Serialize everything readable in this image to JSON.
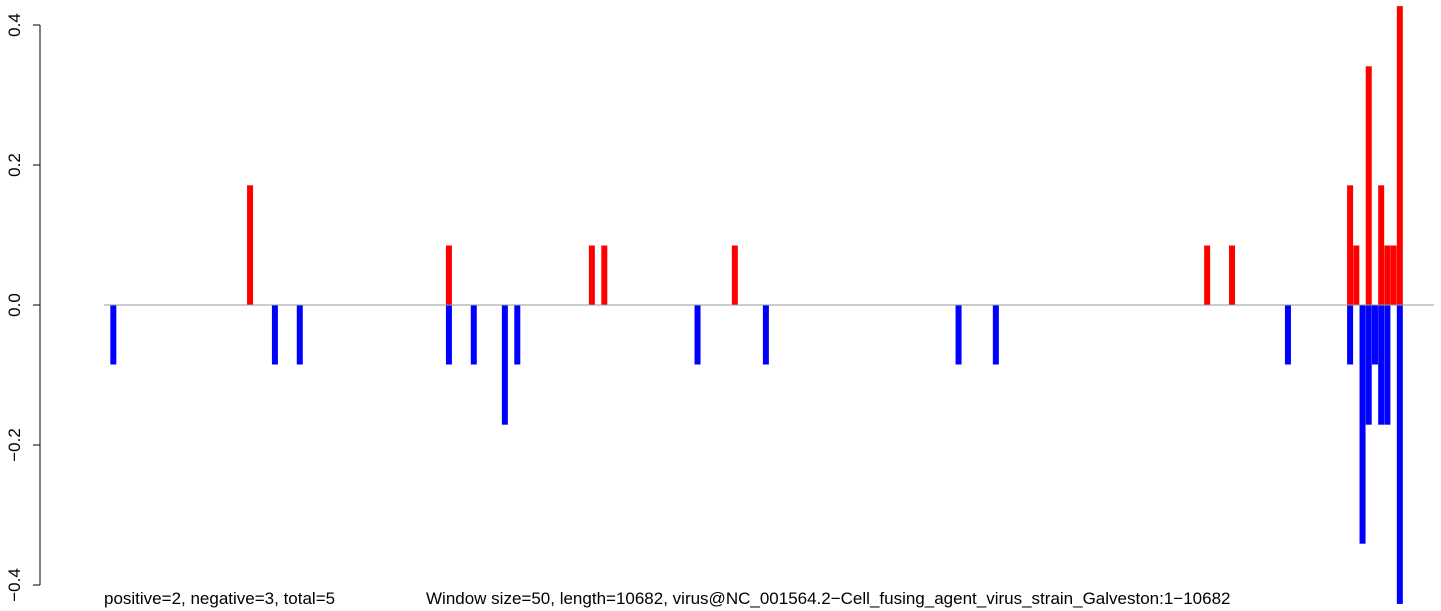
{
  "chart_data": {
    "type": "bar",
    "ylim": [
      -0.4,
      0.4
    ],
    "yticks": [
      -0.4,
      -0.2,
      0.0,
      0.2,
      0.4
    ],
    "ytick_labels": [
      "−0.4",
      "−0.2",
      "0.0",
      "0.2",
      "0.4"
    ],
    "grid": false,
    "legend": "none",
    "colors": {
      "positive": "#ff0000",
      "negative": "#0000ff",
      "baseline": "#999999",
      "axis": "#000000"
    },
    "x_window_count": 214,
    "positive_bars": [
      {
        "window": 23,
        "value": 0.171
      },
      {
        "window": 55,
        "value": 0.085
      },
      {
        "window": 78,
        "value": 0.085
      },
      {
        "window": 80,
        "value": 0.085
      },
      {
        "window": 101,
        "value": 0.085
      },
      {
        "window": 177,
        "value": 0.085
      },
      {
        "window": 181,
        "value": 0.085
      },
      {
        "window": 200,
        "value": 0.171
      },
      {
        "window": 201,
        "value": 0.085
      },
      {
        "window": 203,
        "value": 0.341
      },
      {
        "window": 205,
        "value": 0.171
      },
      {
        "window": 206,
        "value": 0.085
      },
      {
        "window": 207,
        "value": 0.085
      },
      {
        "window": 208,
        "value": 0.427
      }
    ],
    "negative_bars": [
      {
        "window": 1,
        "value": -0.085
      },
      {
        "window": 27,
        "value": -0.085
      },
      {
        "window": 31,
        "value": -0.085
      },
      {
        "window": 55,
        "value": -0.085
      },
      {
        "window": 59,
        "value": -0.085
      },
      {
        "window": 64,
        "value": -0.171
      },
      {
        "window": 66,
        "value": -0.085
      },
      {
        "window": 95,
        "value": -0.085
      },
      {
        "window": 106,
        "value": -0.085
      },
      {
        "window": 137,
        "value": -0.085
      },
      {
        "window": 143,
        "value": -0.085
      },
      {
        "window": 190,
        "value": -0.085
      },
      {
        "window": 200,
        "value": -0.085
      },
      {
        "window": 202,
        "value": -0.341
      },
      {
        "window": 203,
        "value": -0.171
      },
      {
        "window": 204,
        "value": -0.085
      },
      {
        "window": 205,
        "value": -0.171
      },
      {
        "window": 206,
        "value": -0.171
      },
      {
        "window": 208,
        "value": -0.427
      }
    ],
    "footer_left": "positive=2, negative=3, total=5",
    "footer_right": "Window size=50, length=10682, virus@NC_001564.2−Cell_fusing_agent_virus_strain_Galveston:1−10682"
  }
}
